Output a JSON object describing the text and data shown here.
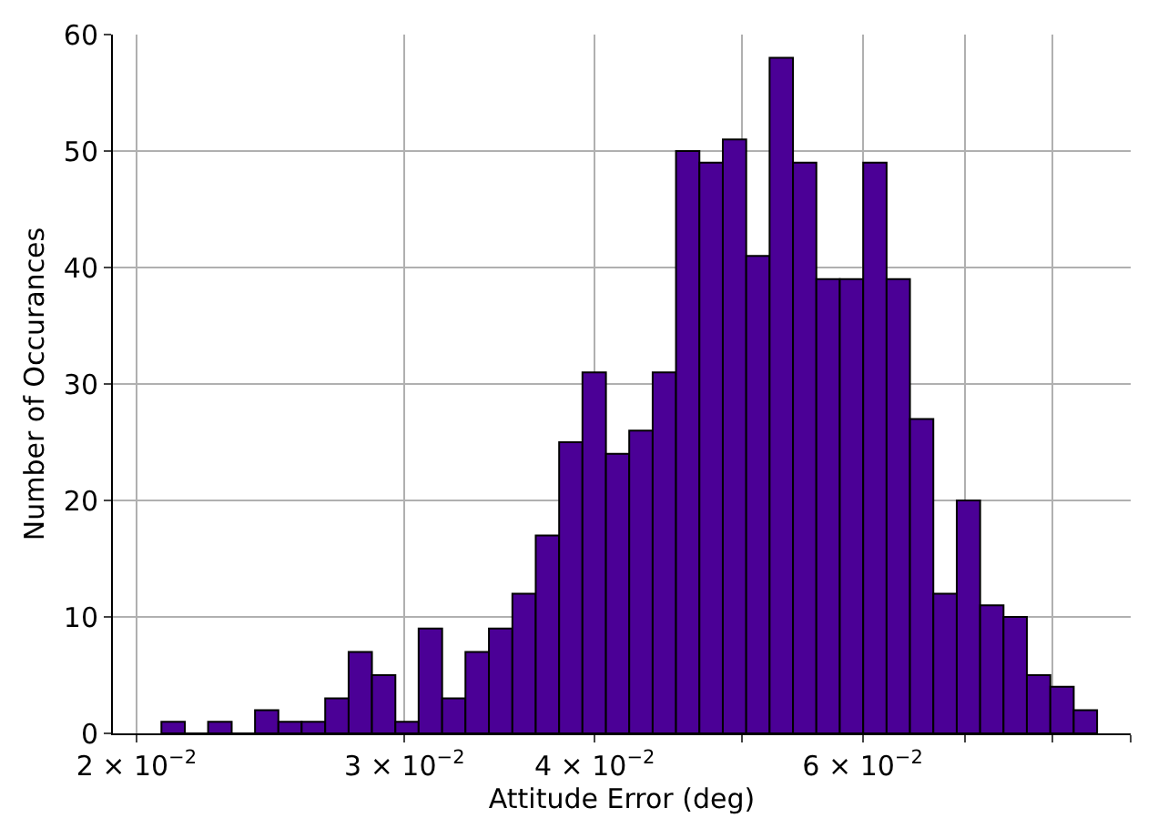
{
  "chart_data": {
    "type": "histogram",
    "xlabel": "Attitude Error (deg)",
    "ylabel": "Number of Occurances",
    "bins": [
      0.02077,
      0.02152,
      0.02229,
      0.0231,
      0.02393,
      0.02479,
      0.02568,
      0.02661,
      0.02757,
      0.02856,
      0.02959,
      0.03065,
      0.03176,
      0.0329,
      0.03409,
      0.03532,
      0.03659,
      0.03791,
      0.03927,
      0.04069,
      0.04215,
      0.04367,
      0.04524,
      0.04687,
      0.04856,
      0.05031,
      0.05212,
      0.054,
      0.05594,
      0.05796,
      0.06005,
      0.06221,
      0.06445,
      0.06677,
      0.06918,
      0.07167,
      0.07425,
      0.07692,
      0.0797,
      0.08257,
      0.08554
    ],
    "values": [
      1,
      0,
      1,
      0,
      2,
      1,
      1,
      3,
      7,
      5,
      1,
      9,
      3,
      7,
      9,
      12,
      17,
      25,
      31,
      24,
      26,
      31,
      50,
      49,
      51,
      41,
      58,
      49,
      39,
      39,
      49,
      39,
      27,
      12,
      20,
      11,
      10,
      5,
      4,
      2
    ],
    "color": "#4b0096",
    "log": "x",
    "xlim": [
      0.0193,
      0.09
    ],
    "xticks": [
      {
        "value": 0.02,
        "label": "2 × 10$^{−2}$"
      },
      {
        "value": 0.03,
        "label": "3 × 10$^{−2}$"
      },
      {
        "value": 0.04,
        "label": "4 × 10$^{−2}$"
      },
      {
        "value": 0.05,
        "label": null
      },
      {
        "value": 0.06,
        "label": "6 × 10$^{−2}$"
      },
      {
        "value": 0.07,
        "label": null
      },
      {
        "value": 0.08,
        "label": null
      },
      {
        "value": 0.09,
        "label": null
      }
    ],
    "ylim": [
      0,
      60
    ],
    "yticks": [
      0,
      10,
      20,
      30,
      40,
      50,
      60
    ],
    "grid": true
  }
}
